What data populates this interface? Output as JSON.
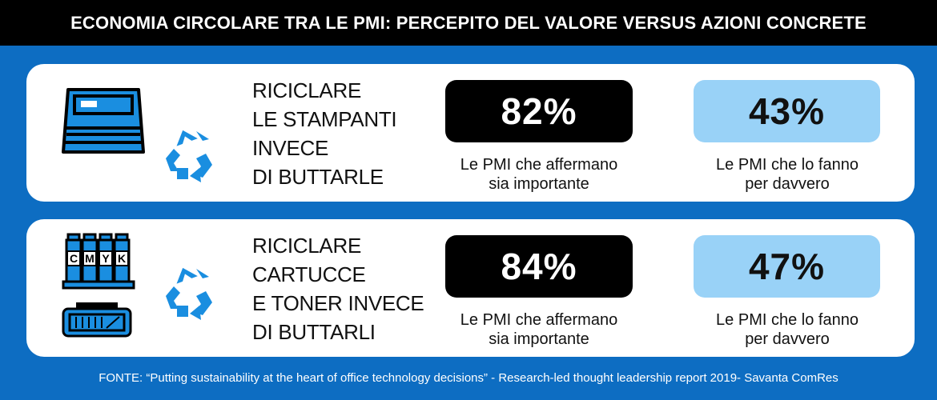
{
  "header": {
    "title": "ECONOMIA CIRCOLARE TRA LE PMI: PERCEPITO DEL VALORE VERSUS AZIONI CONCRETE"
  },
  "rows": [
    {
      "label_lines": [
        "RICICLARE",
        "LE STAMPANTI",
        "INVECE",
        "DI BUTTARLE"
      ],
      "important": {
        "value": "82%",
        "caption_lines": [
          "Le PMI che affermano",
          "sia importante"
        ]
      },
      "actual": {
        "value": "43%",
        "caption_lines": [
          "Le PMI che lo fanno",
          "per davvero"
        ]
      },
      "icons": [
        "printer-icon",
        "recycle-icon"
      ]
    },
    {
      "label_lines": [
        "RICICLARE",
        "CARTUCCE",
        "E TONER INVECE",
        "DI BUTTARLI"
      ],
      "important": {
        "value": "84%",
        "caption_lines": [
          "Le PMI che affermano",
          "sia importante"
        ]
      },
      "actual": {
        "value": "47%",
        "caption_lines": [
          "Le PMI che lo fanno",
          "per davvero"
        ]
      },
      "icons": [
        "ink-cartridges-icon",
        "toner-cartridge-icon",
        "recycle-icon"
      ],
      "cartridge_letters": [
        "C",
        "M",
        "Y",
        "K"
      ]
    }
  ],
  "source": "FONTE: “Putting sustainability at the heart of office technology decisions” - Research-led thought leadership report 2019- Savanta ComRes",
  "chart_data": {
    "type": "table",
    "title": "ECONOMIA CIRCOLARE TRA LE PMI: PERCEPITO DEL VALORE VERSUS AZIONI CONCRETE",
    "columns": [
      "Le PMI che affermano sia importante",
      "Le PMI che lo fanno per davvero"
    ],
    "rows": [
      {
        "category": "RICICLARE LE STAMPANTI INVECE DI BUTTARLE",
        "values": [
          82,
          43
        ]
      },
      {
        "category": "RICICLARE CARTUCCE E TONER INVECE DI BUTTARLI",
        "values": [
          84,
          47
        ]
      }
    ],
    "unit": "%"
  },
  "colors": {
    "background": "#0d6dc2",
    "accent_blue": "#1a8ee0",
    "light_box": "#99d2f7",
    "dark_box": "#000000"
  }
}
